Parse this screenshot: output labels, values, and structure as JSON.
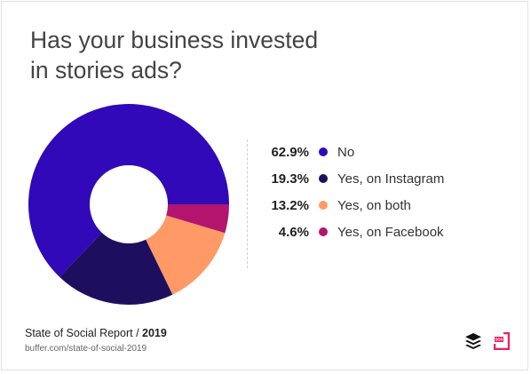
{
  "title_lines": [
    "Has your business invested",
    "in stories ads?"
  ],
  "chart_data": {
    "type": "pie",
    "subtype": "donut",
    "title": "Has your business invested in stories ads?",
    "unit": "%",
    "categories": [
      "No",
      "Yes, on Instagram",
      "Yes, on both",
      "Yes, on Facebook"
    ],
    "values": [
      62.9,
      19.3,
      13.2,
      4.6
    ],
    "colors": [
      "#3109b8",
      "#1e0f5e",
      "#ff9a66",
      "#b3146e"
    ],
    "legend_position": "right"
  },
  "legend": [
    {
      "pct": "62.9%",
      "label": "No"
    },
    {
      "pct": "19.3%",
      "label": "Yes, on Instagram"
    },
    {
      "pct": "13.2%",
      "label": "Yes, on both"
    },
    {
      "pct": "4.6%",
      "label": "Yes, on Facebook"
    }
  ],
  "footer": {
    "source_prefix": "State of Social Report / ",
    "source_year": "2019",
    "url": "buffer.com/state-of-social-2019"
  },
  "logos": {
    "buffer_icon": "buffer-logo-icon",
    "sos_icon": "state-of-social-logo-icon",
    "sos_text": "SOS",
    "sos_color": "#e8215f"
  }
}
